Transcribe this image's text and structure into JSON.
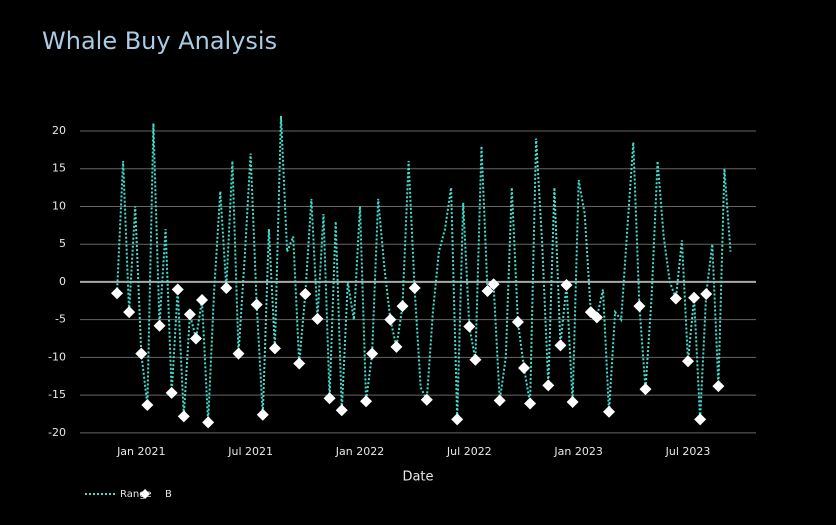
{
  "chart_data": {
    "type": "line",
    "title": "Whale Buy Analysis",
    "x_label": "Date",
    "categories": [
      null,
      null,
      null,
      null,
      "Jan 2021",
      null,
      null,
      null,
      null,
      null,
      null,
      null,
      null,
      null,
      null,
      null,
      null,
      null,
      null,
      null,
      null,
      null,
      "Jul 2021",
      null,
      null,
      null,
      null,
      null,
      null,
      null,
      null,
      null,
      null,
      null,
      null,
      null,
      null,
      null,
      null,
      null,
      "Jan 2022",
      null,
      null,
      null,
      null,
      null,
      null,
      null,
      null,
      null,
      null,
      null,
      null,
      null,
      null,
      null,
      null,
      null,
      "Jul 2022",
      null,
      null,
      null,
      null,
      null,
      null,
      null,
      null,
      null,
      null,
      null,
      null,
      null,
      null,
      null,
      null,
      null,
      "Jan 2023",
      null,
      null,
      null,
      null,
      null,
      null,
      null,
      null,
      null,
      null,
      null,
      null,
      null,
      null,
      null,
      null,
      null,
      "Jul 2023",
      null,
      null,
      null,
      null,
      null,
      null,
      null
    ],
    "series": [
      {
        "name": "Range",
        "color": "#40e0d0",
        "style": "dotted-line",
        "values": [
          -1.5,
          16,
          -4,
          10,
          -9.5,
          -16.3,
          21,
          -5.8,
          7,
          -14.7,
          -1,
          -17.8,
          -4.3,
          -7.5,
          -2.4,
          -18.6,
          -1,
          12,
          -0.8,
          16,
          -9.5,
          3,
          17,
          -3,
          -17.6,
          7,
          -8.8,
          22,
          4,
          6,
          -10.8,
          -1.6,
          11,
          -4.9,
          9,
          -15.4,
          8,
          -17,
          0,
          -5,
          10,
          -15.8,
          -9.5,
          11,
          2,
          -5,
          -8.6,
          -3.2,
          16,
          -0.8,
          -14,
          -15.6,
          -4,
          4,
          7,
          12.5,
          -18.2,
          10.5,
          -5.9,
          -10.3,
          18,
          -1.2,
          -0.3,
          -15.7,
          -10,
          12.5,
          -5.3,
          -11.4,
          -16.1,
          19,
          5,
          -13.7,
          12.5,
          -8.4,
          -0.4,
          -15.9,
          13.5,
          9,
          -4,
          -4.7,
          -1,
          -17.2,
          -4,
          -5,
          7,
          18.5,
          -3.2,
          -14.2,
          -2,
          16,
          6,
          0,
          -2.2,
          5.5,
          -10.5,
          -2.1,
          -18.2,
          -1.6,
          5,
          -13.8,
          15,
          4
        ]
      },
      {
        "name": "B",
        "color": "#ffffff",
        "style": "diamond-markers",
        "values": [
          -1.5,
          null,
          -4,
          null,
          -9.5,
          -16.3,
          null,
          -5.8,
          null,
          -14.7,
          -1,
          -17.8,
          -4.3,
          -7.5,
          -2.4,
          -18.6,
          null,
          null,
          -0.8,
          null,
          -9.5,
          null,
          null,
          -3,
          -17.6,
          null,
          -8.8,
          null,
          null,
          null,
          -10.8,
          -1.6,
          null,
          -4.9,
          null,
          -15.4,
          null,
          -17,
          null,
          null,
          null,
          -15.8,
          -9.5,
          null,
          null,
          -5,
          -8.6,
          -3.2,
          null,
          -0.8,
          null,
          -15.6,
          null,
          null,
          null,
          null,
          -18.2,
          null,
          -5.9,
          -10.3,
          null,
          -1.2,
          -0.3,
          -15.7,
          null,
          null,
          -5.3,
          -11.4,
          -16.1,
          null,
          null,
          -13.7,
          null,
          -8.4,
          -0.4,
          -15.9,
          null,
          null,
          -4,
          -4.7,
          null,
          -17.2,
          null,
          null,
          null,
          null,
          -3.2,
          -14.2,
          null,
          null,
          null,
          null,
          -2.2,
          null,
          -10.5,
          -2.1,
          -18.2,
          -1.6,
          null,
          -13.8,
          null,
          null
        ]
      }
    ],
    "ylim": [
      -21.6,
      24.1
    ],
    "yticks": [
      -20,
      -15,
      -10,
      -5,
      0,
      5,
      10,
      15,
      20
    ],
    "grid": true,
    "legend": "bottom-left"
  }
}
